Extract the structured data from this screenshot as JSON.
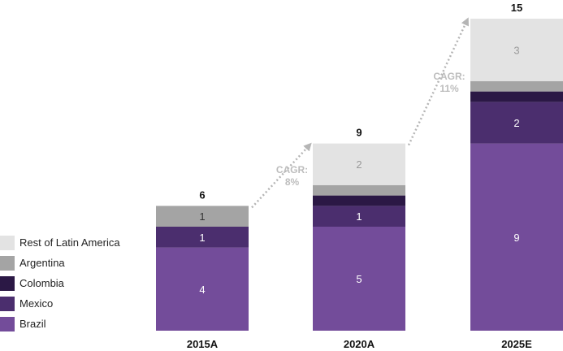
{
  "chart_data": {
    "type": "bar",
    "stacked": true,
    "categories": [
      "2015A",
      "2020A",
      "2025E"
    ],
    "totals": [
      "6",
      "9",
      "15"
    ],
    "series": [
      {
        "name": "Brazil",
        "color": "#734c9a",
        "text_color": "#ffffff",
        "values": [
          4,
          5,
          9
        ],
        "labels": [
          "4",
          "5",
          "9"
        ]
      },
      {
        "name": "Mexico",
        "color": "#4b2e6e",
        "text_color": "#ffffff",
        "values": [
          1,
          1,
          2
        ],
        "labels": [
          "1",
          "1",
          "2"
        ]
      },
      {
        "name": "Colombia",
        "color": "#2b1845",
        "text_color": "#ffffff",
        "values": [
          0,
          0.5,
          0.5
        ],
        "labels": [
          "",
          "",
          ""
        ]
      },
      {
        "name": "Argentina",
        "color": "#a4a4a4",
        "text_color": "#333333",
        "values": [
          1,
          0.5,
          0.5
        ],
        "labels": [
          "1",
          "",
          ""
        ]
      },
      {
        "name": "Rest of Latin America",
        "color": "#e3e3e3",
        "text_color": "#9a9a9a",
        "values": [
          0,
          2,
          3
        ],
        "labels": [
          "",
          "2",
          "3"
        ]
      }
    ],
    "annotations": [
      {
        "from": 0,
        "to": 1,
        "line1": "CAGR:",
        "line2": "8%"
      },
      {
        "from": 1,
        "to": 2,
        "line1": "CAGR:",
        "line2": "11%"
      }
    ],
    "legend_position": "left"
  }
}
